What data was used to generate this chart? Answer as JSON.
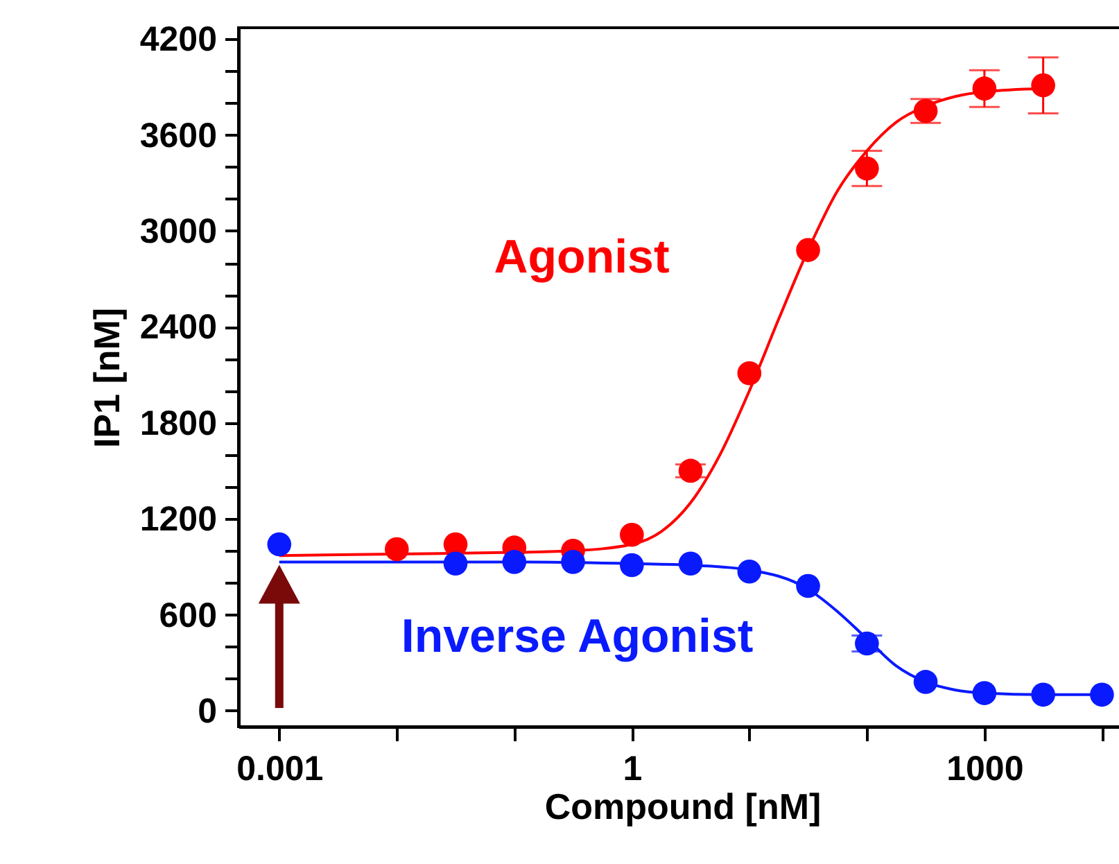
{
  "chart_data": {
    "type": "scatter",
    "xlabel": "Compound [nM]",
    "ylabel": "IP1 [nM]",
    "log": "x",
    "marker": "circle",
    "legend": false,
    "grid": false,
    "xlim": [
      0.00045,
      16000
    ],
    "ylim": [
      -100,
      4270
    ],
    "xticks": [
      0.001,
      {
        "value": 0.01,
        "label": null
      },
      {
        "value": 0.1,
        "label": null
      },
      1,
      {
        "value": 10,
        "label": null
      },
      {
        "value": 100,
        "label": null
      },
      1000,
      {
        "value": 10000,
        "label": null
      }
    ],
    "yticks": [
      0,
      {
        "value": 200,
        "label": null
      },
      {
        "value": 400,
        "label": null
      },
      600,
      {
        "value": 800,
        "label": null
      },
      {
        "value": 1000,
        "label": null
      },
      1200,
      {
        "value": 1400,
        "label": null
      },
      {
        "value": 1600,
        "label": null
      },
      1800,
      {
        "value": 2000,
        "label": null
      },
      {
        "value": 2200,
        "label": null
      },
      2400,
      {
        "value": 2600,
        "label": null
      },
      {
        "value": 2800,
        "label": null
      },
      3000,
      {
        "value": 3200,
        "label": null
      },
      {
        "value": 3400,
        "label": null
      },
      3600,
      {
        "value": 3800,
        "label": null
      },
      {
        "value": 4000,
        "label": null
      },
      4200
    ],
    "series": [
      {
        "name": "Agonist",
        "color": "#ff0000",
        "x": [
          0.01,
          0.0316,
          0.1,
          0.316,
          1,
          3.16,
          10,
          31.6,
          100,
          316,
          1000,
          3162
        ],
        "values": [
          1010,
          1040,
          1020,
          1000,
          1100,
          1500,
          2110,
          2880,
          3390,
          3750,
          3890,
          3910
        ],
        "errors": [
          null,
          null,
          null,
          null,
          null,
          40,
          null,
          null,
          110,
          75,
          115,
          175
        ]
      },
      {
        "name": "Inverse Agonist",
        "color": "#0a1aff",
        "x": [
          0.001,
          0.0316,
          0.1,
          0.316,
          1,
          3.16,
          10,
          31.6,
          100,
          316,
          1000,
          3162,
          10000
        ],
        "values": [
          1040,
          920,
          930,
          930,
          910,
          920,
          870,
          780,
          420,
          180,
          110,
          100,
          100
        ],
        "errors": [
          null,
          null,
          null,
          null,
          null,
          null,
          null,
          null,
          50,
          null,
          null,
          null,
          null
        ]
      },
      {
        "type": "line",
        "marker": "none",
        "line_style": "solid",
        "color": "#ff0000",
        "x": [
          0.001,
          0.01,
          0.1,
          0.316,
          1,
          1.78,
          3.16,
          5.62,
          10,
          17.8,
          31.6,
          56.2,
          100,
          178,
          316,
          562,
          1000,
          3162
        ],
        "values": [
          970,
          980,
          990,
          1000,
          1040,
          1120,
          1300,
          1600,
          2000,
          2450,
          2880,
          3250,
          3500,
          3680,
          3780,
          3840,
          3870,
          3890
        ]
      },
      {
        "type": "line",
        "marker": "none",
        "line_style": "solid",
        "color": "#0a1aff",
        "x": [
          0.001,
          0.01,
          0.1,
          1,
          3.16,
          10,
          31.6,
          56.2,
          100,
          178,
          316,
          562,
          1000,
          3162,
          10000
        ],
        "values": [
          930,
          930,
          930,
          920,
          910,
          880,
          760,
          620,
          450,
          280,
          180,
          130,
          110,
          100,
          100
        ]
      }
    ]
  }
}
